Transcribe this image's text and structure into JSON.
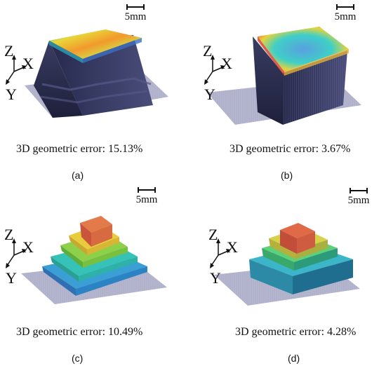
{
  "scale_label": "5mm",
  "axis_labels": {
    "z": "Z",
    "x": "X",
    "y": "Y"
  },
  "panels": [
    {
      "tag": "(a)",
      "error": "3D geometric error: 15.13%"
    },
    {
      "tag": "(b)",
      "error": "3D geometric error: 3.67%"
    },
    {
      "tag": "(c)",
      "error": "3D geometric error: 10.49%"
    },
    {
      "tag": "(d)",
      "error": "3D geometric error: 4.28%"
    }
  ]
}
